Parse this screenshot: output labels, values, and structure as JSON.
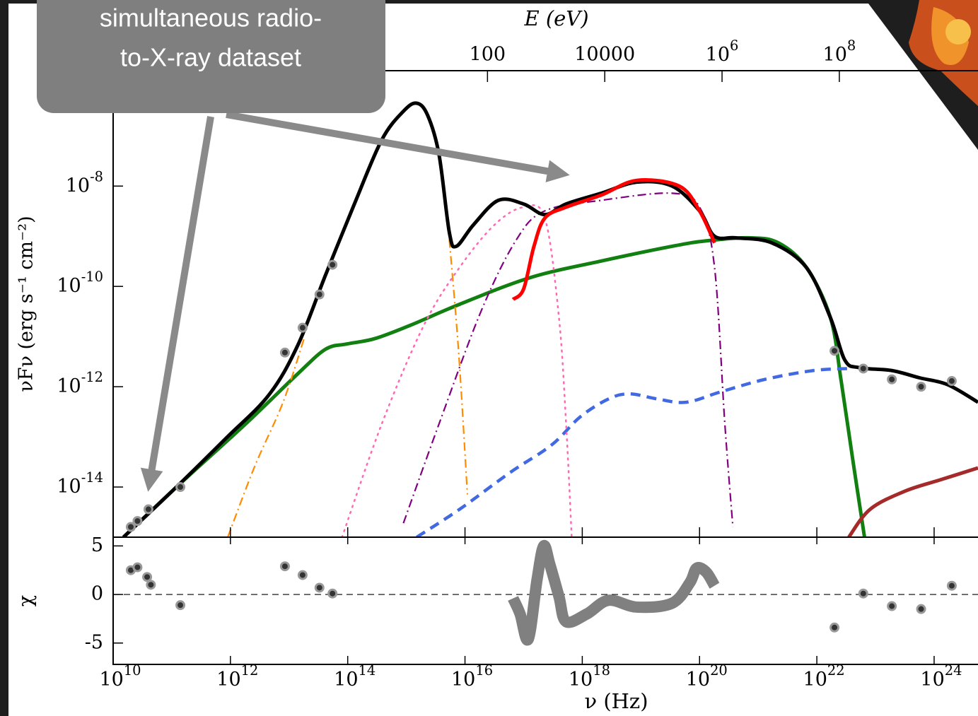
{
  "callout": {
    "lines": [
      "simultaneous radio-",
      "to-X-ray dataset"
    ]
  },
  "chart_data": [
    {
      "type": "line",
      "xlog": true,
      "ylog": true,
      "ylabel": "νFν (erg s⁻¹ cm⁻²)",
      "x2label": "E (eV)",
      "xlim": [
        10000000000.0,
        5.6e+24
      ],
      "ylim": [
        1e-15,
        2e-06
      ],
      "x2lim": [
        4.136e-05,
        23160000000.0
      ],
      "yticks": [
        {
          "value": 1e-08,
          "label": "10^-8"
        },
        {
          "value": 1e-10,
          "label": "10^-10"
        },
        {
          "value": 1e-12,
          "label": "10^-12"
        },
        {
          "value": 1e-14,
          "label": "10^-14"
        }
      ],
      "x2ticks": [
        100,
        10000,
        {
          "value": 1000000,
          "label": "10^6"
        },
        {
          "value": 100000000,
          "label": "10^8"
        }
      ],
      "series": [
        {
          "color": "#118011",
          "linestyle": "solid",
          "x": [
            15000000000.0,
            120000000000.0,
            1900000000000.0,
            14000000000000.0,
            42000000000000.0,
            96000000000000.0,
            290000000000000.0,
            1200000000000000.0,
            8100000000000000.0,
            1.3e+17,
            2.1e+18,
            3.4e+19,
            1.3e+20,
            7.2e+20,
            2.2e+21,
            6.6e+21,
            1.7e+22,
            2.6e+22,
            4.1e+22,
            6.5e+22
          ],
          "values": [
            1e-15,
            1e-14,
            1.9e-13,
            1.8e-12,
            5.6e-12,
            7.1e-12,
            9.1e-12,
            1.7e-11,
            4.4e-11,
            1.5e-10,
            3.2e-10,
            6.3e-10,
            8.1e-10,
            9.3e-10,
            7.4e-10,
            2.4e-10,
            2.4e-11,
            1.3e-12,
            3.5e-14,
            1e-15
          ]
        },
        {
          "color": "#4169e1",
          "linestyle": "dashed",
          "x": [
            1500000000000000.0,
            8100000000000000.0,
            5.7e+16,
            3e+17,
            9.2e+17,
            2.8e+18,
            6.4e+18,
            1.9e+19,
            5.9e+19,
            2.3e+20,
            1.3e+21,
            8.7e+21,
            3.5e+22
          ],
          "values": [
            1e-15,
            3.6e-15,
            1.9e-14,
            6.9e-14,
            2.5e-13,
            5.7e-13,
            7.2e-13,
            5.7e-13,
            4.9e-13,
            7.9e-13,
            1.4e-12,
            2.1e-12,
            2.3e-12
          ]
        },
        {
          "color": "#a52a2a",
          "linestyle": "solid",
          "x": [
            3.5e+22,
            8.1e+22,
            3.2e+23,
            1.3e+24,
            5.6e+24
          ],
          "values": [
            1e-15,
            3.6e-15,
            8.3e-15,
            1.4e-14,
            2.4e-14
          ]
        },
        {
          "color": "#ff8c00",
          "linestyle": "dashdot",
          "x": [
            900000000000.0,
            2600000000000.0,
            7900000000000.0,
            18000000000000.0,
            null,
            5400000000000000.0,
            7800000000000000.0,
            1.1e+16
          ],
          "values": [
            1e-15,
            2.6e-14,
            4.9e-13,
            9.1e-12,
            null,
            8.7e-10,
            4.8e-12,
            7.1e-15
          ]
        },
        {
          "color": "#ff69b4",
          "linestyle": "dotted",
          "x": [
            80000000000000.0,
            380000000000000.0,
            2000000000000000.0,
            8100000000000000.0,
            3.2e+16,
            1e+17,
            2.3e+17,
            4e+17,
            5.3e+17,
            6.6e+17
          ],
          "values": [
            1e-15,
            1.8e-13,
            1.7e-11,
            2.4e-10,
            1.7e-09,
            3.8e-09,
            2.3e-09,
            2.4e-11,
            1.8e-13,
            1e-15
          ]
        },
        {
          "color": "#800080",
          "linestyle": "dashdot",
          "x": [
            890000000000000.0,
            3600000000000000.0,
            1.9e+16,
            7.6e+16,
            2.3e+17,
            2.1e+18,
            3.4e+19,
            1e+20,
            1.8e+20,
            2.7e+20,
            3.7e+20
          ],
          "values": [
            1.9e-15,
            1.8e-13,
            3.3e-11,
            8.7e-10,
            3.2e-09,
            5.2e-09,
            7.2e-09,
            3.8e-09,
            2.4e-10,
            1.8e-13,
            1.6e-15
          ]
        },
        {
          "color": "#000000",
          "linestyle": "solid",
          "x": [
            15000000000.0,
            120000000000.0,
            850000000000.0,
            4500000000000.0,
            14000000000000.0,
            42000000000000.0,
            130000000000000.0,
            380000000000000.0,
            890000000000000.0,
            1500000000000000.0,
            2300000000000000.0,
            3600000000000000.0,
            5400000000000000.0,
            7100000000000000.0,
            1.4e+16,
            3.7e+16,
            1e+17,
            2.3e+17,
            5.3e+17,
            2.1e+18,
            8.5e+18,
            3.4e+19,
            1e+20,
            1.8e+20,
            4.2e+20,
            1.7e+21,
            6.6e+21,
            1.7e+22,
            3e+22,
            5.3e+22,
            1.9e+23,
            5.7e+23,
            1.7e+24,
            5.6e+24
          ],
          "values": [
            1e-15,
            1e-14,
            9.5e-14,
            6.8e-13,
            6.6e-12,
            1.7e-10,
            4.4e-09,
            8.3e-08,
            3.1e-07,
            4.5e-07,
            2.6e-07,
            4.3e-08,
            1.2e-09,
            6.3e-10,
            1.7e-09,
            5.2e-09,
            4.4e-09,
            2.7e-09,
            4.4e-09,
            7.2e-09,
            1.2e-08,
            1e-08,
            3.2e-09,
            1e-09,
            9.3e-10,
            7.4e-10,
            2.4e-10,
            2.4e-11,
            3.4e-12,
            2.4e-12,
            2.1e-12,
            1.5e-12,
            1.1e-12,
            4.9e-13
          ]
        },
        {
          "color": "#ff0000",
          "linestyle": "solid",
          "x": [
            6.6e+16,
            1e+17,
            1.5e+17,
            2.3e+17,
            5.3e+17,
            2.1e+18,
            8.5e+18,
            4.5e+19,
            1e+20,
            1.8e+20
          ],
          "values": [
            5.5e-11,
            8.9e-11,
            6.3e-10,
            2.3e-09,
            3.8e-09,
            6.6e-09,
            1.3e-08,
            1e-08,
            3.2e-09,
            7.4e-10
          ]
        },
        {
          "color": "#333333",
          "type": "scatter",
          "x": [
            20000000000.0,
            26000000000.0,
            40000000000.0,
            140000000000.0,
            8500000000000.0,
            17000000000000.0,
            33000000000000.0,
            55000000000000.0,
            2e+22,
            6.2e+22,
            1.9e+23,
            6e+23,
            2e+24
          ],
          "values": [
            1.6e-15,
            2.1e-15,
            3.6e-15,
            1e-14,
            4.8e-12,
            1.5e-11,
            6.9e-11,
            2.7e-10,
            5.2e-12,
            2.3e-12,
            1.4e-12,
            1e-12,
            1.3e-12
          ]
        }
      ]
    },
    {
      "type": "line",
      "xlog": true,
      "ylog": false,
      "ylabel": "χ",
      "xlabel": "ν (Hz)",
      "xlim": [
        10000000000.0,
        5.6e+24
      ],
      "ylim": [
        -7.2,
        5.9
      ],
      "yticks": [
        5,
        0,
        -5
      ],
      "hline": 0,
      "xticks": [
        {
          "value": 10000000000.0,
          "label": "10^10"
        },
        {
          "value": 1000000000000.0,
          "label": "10^12"
        },
        {
          "value": 100000000000000.0,
          "label": "10^14"
        },
        {
          "value": 1e+16,
          "label": "10^16"
        },
        {
          "value": 1e+18,
          "label": "10^18"
        },
        {
          "value": 1e+20,
          "label": "10^20"
        },
        {
          "value": 1e+22,
          "label": "10^22"
        },
        {
          "value": 1e+24,
          "label": "10^24"
        }
      ],
      "series": [
        {
          "color": "#808080",
          "linestyle": "band",
          "x": [
            6.6e+16,
            8.7e+16,
            1.2e+17,
            1.7e+17,
            2.2e+17,
            2.8e+17,
            4e+17,
            5.3e+17,
            1.2e+18,
            2.8e+18,
            8.5e+18,
            3.4e+19,
            6.8e+19,
            8.9e+19,
            1.3e+20,
            1.8e+20
          ],
          "values": [
            -0.4,
            -2.0,
            -4.6,
            1.6,
            5.0,
            3.1,
            -0.2,
            -2.8,
            -2.0,
            -0.6,
            -1.3,
            -0.9,
            1.2,
            2.7,
            2.3,
            0.9
          ]
        },
        {
          "color": "#333333",
          "type": "scatter",
          "x": [
            20000000000.0,
            26000000000.0,
            38000000000.0,
            44000000000.0,
            140000000000.0,
            8500000000000.0,
            17000000000000.0,
            33000000000000.0,
            55000000000000.0,
            2e+22,
            6.2e+22,
            1.9e+23,
            6e+23,
            2e+24
          ],
          "values": [
            2.5,
            2.8,
            1.8,
            1.0,
            -1.1,
            2.9,
            2.0,
            0.7,
            0.1,
            -3.4,
            0.1,
            -1.2,
            -1.5,
            0.9
          ]
        }
      ]
    }
  ]
}
